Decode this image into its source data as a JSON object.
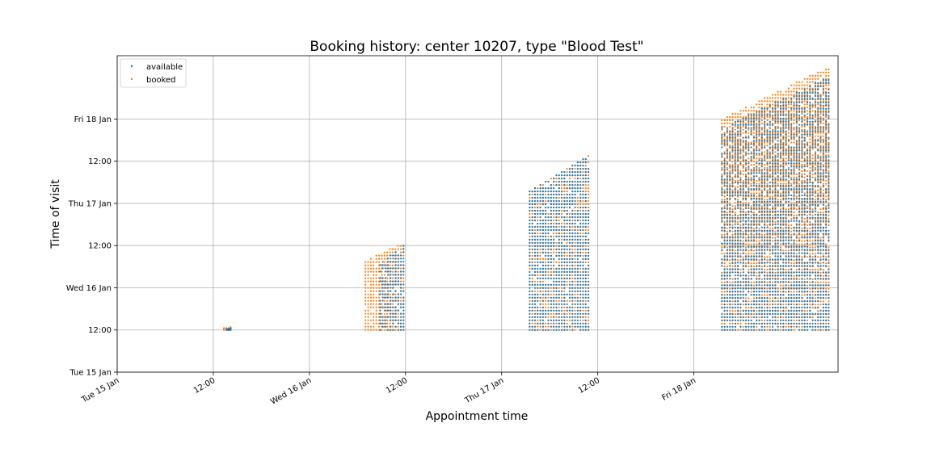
{
  "chart_data": {
    "type": "scatter",
    "title": "Booking history: center 10207,  type \"Blood Test\"",
    "xlabel": "Appointment time",
    "ylabel": "Time of visit",
    "x_unit": "datetime",
    "y_unit": "datetime",
    "xlim": [
      "2019-01-15 00:00",
      "2019-01-18 18:00"
    ],
    "ylim": [
      "2019-01-15 00:00",
      "2019-01-18 18:00"
    ],
    "x_ticks": [
      {
        "value": "2019-01-15 00:00",
        "label": "Tue 15 Jan"
      },
      {
        "value": "2019-01-15 12:00",
        "label": "12:00"
      },
      {
        "value": "2019-01-16 00:00",
        "label": "Wed 16 Jan"
      },
      {
        "value": "2019-01-16 12:00",
        "label": "12:00"
      },
      {
        "value": "2019-01-17 00:00",
        "label": "Thu 17 Jan"
      },
      {
        "value": "2019-01-17 12:00",
        "label": "12:00"
      },
      {
        "value": "2019-01-18 00:00",
        "label": "Fri 18 Jan"
      }
    ],
    "y_ticks": [
      {
        "value": "2019-01-15 00:00",
        "label": "Tue 15 Jan"
      },
      {
        "value": "2019-01-15 12:00",
        "label": "12:00"
      },
      {
        "value": "2019-01-16 00:00",
        "label": "Wed 16 Jan"
      },
      {
        "value": "2019-01-16 12:00",
        "label": "12:00"
      },
      {
        "value": "2019-01-17 00:00",
        "label": "Thu 17 Jan"
      },
      {
        "value": "2019-01-17 12:00",
        "label": "12:00"
      },
      {
        "value": "2019-01-18 00:00",
        "label": "Fri 18 Jan"
      }
    ],
    "grid": true,
    "legend_position": "top-left",
    "series": [
      {
        "name": "available",
        "color": "#1f77b4",
        "clusters": [
          {
            "x_range": [
              "2019-01-15 13:40",
              "2019-01-15 14:10"
            ],
            "y_range": [
              "2019-01-15 12:00",
              "2019-01-15 12:30"
            ]
          },
          {
            "x_range": [
              "2019-01-16 08:50",
              "2019-01-16 11:45"
            ],
            "y_range": [
              "2019-01-15 12:00",
              "2019-01-16 12:00"
            ]
          },
          {
            "x_range": [
              "2019-01-17 03:30",
              "2019-01-17 10:50"
            ],
            "y_range": [
              "2019-01-15 12:00",
              "2019-01-17 13:30"
            ]
          },
          {
            "x_range": [
              "2019-01-18 03:30",
              "2019-01-18 16:50"
            ],
            "y_range": [
              "2019-01-15 12:00",
              "2019-01-18 12:00"
            ]
          }
        ]
      },
      {
        "name": "booked",
        "color": "#ff7f0e",
        "clusters": [
          {
            "x_range": [
              "2019-01-15 13:20",
              "2019-01-15 14:10"
            ],
            "y_range": [
              "2019-01-15 12:00",
              "2019-01-15 12:50"
            ]
          },
          {
            "x_range": [
              "2019-01-16 07:00",
              "2019-01-16 11:45"
            ],
            "y_range": [
              "2019-01-15 12:00",
              "2019-01-16 12:50"
            ]
          },
          {
            "x_range": [
              "2019-01-17 03:30",
              "2019-01-17 10:50"
            ],
            "y_range": [
              "2019-01-15 12:00",
              "2019-01-17 13:30"
            ]
          },
          {
            "x_range": [
              "2019-01-18 03:30",
              "2019-01-18 16:50"
            ],
            "y_range": [
              "2019-01-15 12:00",
              "2019-01-18 15:00"
            ]
          }
        ]
      }
    ]
  }
}
